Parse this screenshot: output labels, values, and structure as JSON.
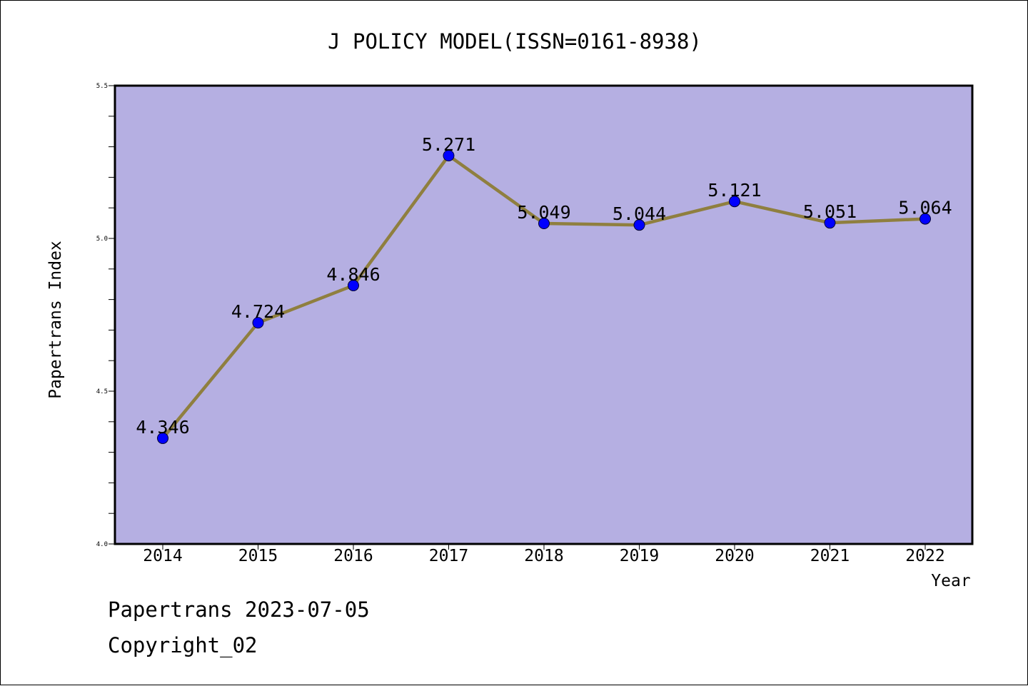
{
  "chart_data": {
    "type": "line",
    "title": "J POLICY MODEL(ISSN=0161-8938)",
    "xlabel": "Year",
    "ylabel": "Papertrans Index",
    "categories": [
      "2014",
      "2015",
      "2016",
      "2017",
      "2018",
      "2019",
      "2020",
      "2021",
      "2022"
    ],
    "values": [
      4.346,
      4.724,
      4.846,
      5.271,
      5.049,
      5.044,
      5.121,
      5.051,
      5.064
    ],
    "data_labels": [
      "4.346",
      "4.724",
      "4.846",
      "5.271",
      "5.049",
      "5.044",
      "5.121",
      "5.051",
      "5.064"
    ],
    "ylim": [
      4.0,
      5.5
    ],
    "y_tick_labels": [
      "4.0",
      "4.5",
      "5.0",
      "5.5"
    ],
    "y_ticks": [
      4.0,
      4.5,
      5.0,
      5.5
    ],
    "grid": false,
    "legend": "none",
    "colors": {
      "plot_background": "#b5afe2",
      "line": "#8f7f3f",
      "marker": "#0000ff"
    }
  },
  "footer": {
    "line1": "Papertrans 2023-07-05",
    "line2": "Copyright_02"
  }
}
